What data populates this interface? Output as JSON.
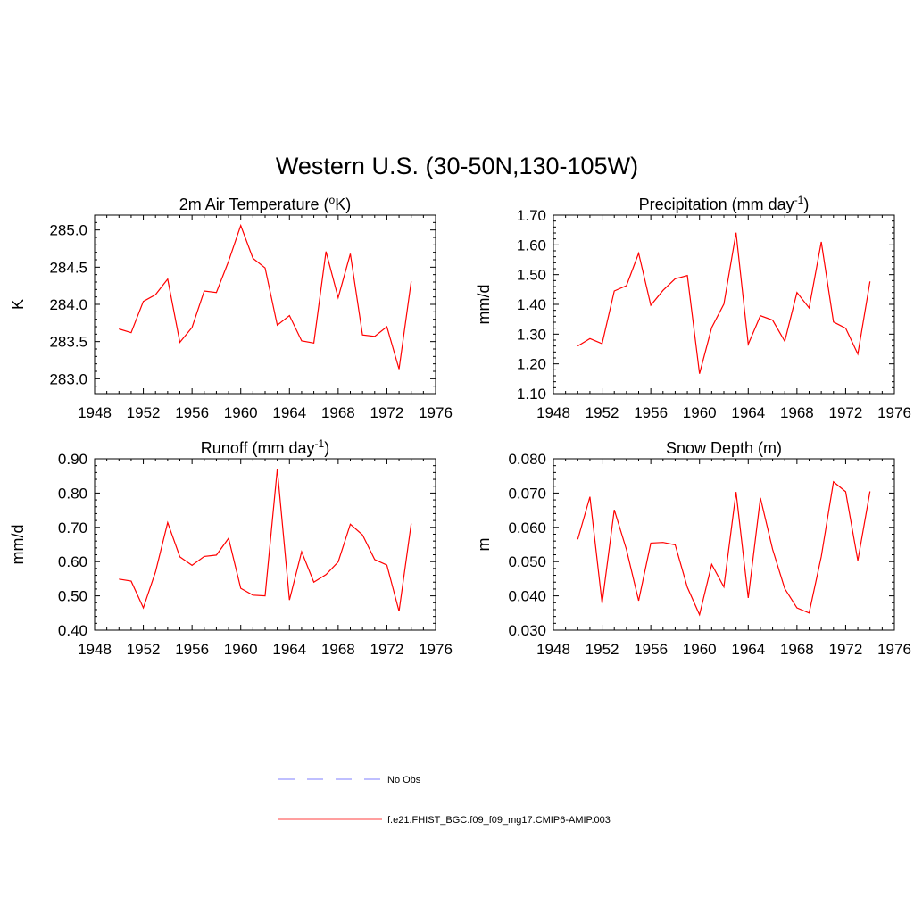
{
  "figure": {
    "title": "Western U.S. (30-50N,130-105W)"
  },
  "legend": {
    "items": [
      {
        "label": "No Obs",
        "color": "#9999ff",
        "dash": "dashed"
      },
      {
        "label": "f.e21.FHIST_BGC.f09_f09_mg17.CMIP6-AMIP.003",
        "color": "#ff6666",
        "dash": "solid"
      }
    ]
  },
  "colors": {
    "series": "#ff0000",
    "axis": "#000000"
  },
  "chart_data": [
    {
      "type": "line",
      "title": "2m Air Temperature (",
      "title_sup_pre": "o",
      "title_post": "K)",
      "ylabel": "K",
      "xlim": [
        1948,
        1976
      ],
      "ylim": [
        282.8,
        285.2
      ],
      "xticks": [
        "1948",
        "1952",
        "1956",
        "1960",
        "1964",
        "1968",
        "1972",
        "1976"
      ],
      "yticks": [
        "283.0",
        "283.5",
        "284.0",
        "284.5",
        "285.0"
      ],
      "ytick_values": [
        283.0,
        283.5,
        284.0,
        284.5,
        285.0
      ],
      "x": [
        1950,
        1951,
        1952,
        1953,
        1954,
        1955,
        1956,
        1957,
        1958,
        1959,
        1960,
        1961,
        1962,
        1963,
        1964,
        1965,
        1966,
        1967,
        1968,
        1969,
        1970,
        1971,
        1972,
        1973,
        1974
      ],
      "series": [
        {
          "values": [
            283.67,
            283.62,
            284.04,
            284.13,
            284.34,
            283.49,
            283.69,
            284.18,
            284.16,
            284.58,
            285.06,
            284.62,
            284.49,
            283.72,
            283.85,
            283.51,
            283.48,
            284.71,
            284.09,
            284.68,
            283.59,
            283.57,
            283.7,
            283.13,
            284.31
          ]
        }
      ]
    },
    {
      "type": "line",
      "title": "Precipitation (mm day",
      "title_sup": "-1",
      "title_post": ")",
      "ylabel": "mm/d",
      "xlim": [
        1948,
        1976
      ],
      "ylim": [
        1.1,
        1.7
      ],
      "xticks": [
        "1948",
        "1952",
        "1956",
        "1960",
        "1964",
        "1968",
        "1972",
        "1976"
      ],
      "yticks": [
        "1.10",
        "1.20",
        "1.30",
        "1.40",
        "1.50",
        "1.60",
        "1.70"
      ],
      "ytick_values": [
        1.1,
        1.2,
        1.3,
        1.4,
        1.5,
        1.6,
        1.7
      ],
      "x": [
        1950,
        1951,
        1952,
        1953,
        1954,
        1955,
        1956,
        1957,
        1958,
        1959,
        1960,
        1961,
        1962,
        1963,
        1964,
        1965,
        1966,
        1967,
        1968,
        1969,
        1970,
        1971,
        1972,
        1973,
        1974
      ],
      "series": [
        {
          "values": [
            1.26,
            1.285,
            1.268,
            1.445,
            1.463,
            1.572,
            1.397,
            1.447,
            1.486,
            1.497,
            1.167,
            1.322,
            1.401,
            1.641,
            1.266,
            1.362,
            1.347,
            1.276,
            1.44,
            1.388,
            1.61,
            1.341,
            1.32,
            1.233,
            1.477
          ]
        }
      ]
    },
    {
      "type": "line",
      "title": "Runoff (mm day",
      "title_sup": "-1",
      "title_post": ")",
      "ylabel": "mm/d",
      "xlim": [
        1948,
        1976
      ],
      "ylim": [
        0.4,
        0.9
      ],
      "xticks": [
        "1948",
        "1952",
        "1956",
        "1960",
        "1964",
        "1968",
        "1972",
        "1976"
      ],
      "yticks": [
        "0.40",
        "0.50",
        "0.60",
        "0.70",
        "0.80",
        "0.90"
      ],
      "ytick_values": [
        0.4,
        0.5,
        0.6,
        0.7,
        0.8,
        0.9
      ],
      "x": [
        1950,
        1951,
        1952,
        1953,
        1954,
        1955,
        1956,
        1957,
        1958,
        1959,
        1960,
        1961,
        1962,
        1963,
        1964,
        1965,
        1966,
        1967,
        1968,
        1969,
        1970,
        1971,
        1972,
        1973,
        1974
      ],
      "series": [
        {
          "values": [
            0.549,
            0.543,
            0.465,
            0.57,
            0.714,
            0.614,
            0.589,
            0.615,
            0.619,
            0.668,
            0.522,
            0.502,
            0.5,
            0.87,
            0.488,
            0.629,
            0.54,
            0.562,
            0.599,
            0.709,
            0.678,
            0.606,
            0.59,
            0.455,
            0.711
          ]
        }
      ]
    },
    {
      "type": "line",
      "title": "Snow Depth (m)",
      "ylabel": "m",
      "xlim": [
        1948,
        1976
      ],
      "ylim": [
        0.03,
        0.08
      ],
      "xticks": [
        "1948",
        "1952",
        "1956",
        "1960",
        "1964",
        "1968",
        "1972",
        "1976"
      ],
      "yticks": [
        "0.030",
        "0.040",
        "0.050",
        "0.060",
        "0.070",
        "0.080"
      ],
      "ytick_values": [
        0.03,
        0.04,
        0.05,
        0.06,
        0.07,
        0.08
      ],
      "x": [
        1950,
        1951,
        1952,
        1953,
        1954,
        1955,
        1956,
        1957,
        1958,
        1959,
        1960,
        1961,
        1962,
        1963,
        1964,
        1965,
        1966,
        1967,
        1968,
        1969,
        1970,
        1971,
        1972,
        1973,
        1974
      ],
      "series": [
        {
          "values": [
            0.0565,
            0.0689,
            0.0378,
            0.0651,
            0.0535,
            0.0386,
            0.0554,
            0.0556,
            0.0549,
            0.0425,
            0.0345,
            0.0492,
            0.0426,
            0.0703,
            0.0394,
            0.0686,
            0.0536,
            0.0421,
            0.0365,
            0.035,
            0.0515,
            0.0733,
            0.0704,
            0.0503,
            0.0705
          ]
        }
      ]
    }
  ]
}
